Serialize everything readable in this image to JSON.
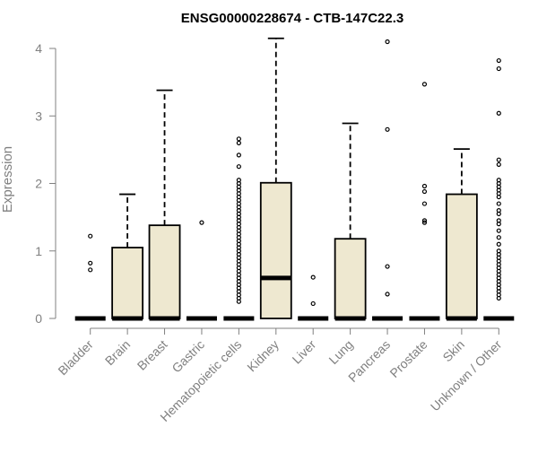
{
  "chart_data": {
    "type": "box",
    "title": "ENSG00000228674 - CTB-147C22.3",
    "xlabel": "",
    "ylabel": "Expression",
    "ylim": [
      0,
      4.2
    ],
    "yticks": [
      0,
      1,
      2,
      3,
      4
    ],
    "grid": false,
    "legend": "none",
    "categories": [
      "Bladder",
      "Brain",
      "Breast",
      "Gastric",
      "Hematopoietic cells",
      "Kidney",
      "Liver",
      "Lung",
      "Pancreas",
      "Prostate",
      "Skin",
      "Unknown / Other"
    ],
    "boxes": [
      {
        "q1": 0,
        "median": 0,
        "q3": 0,
        "whisker_low": 0,
        "whisker_high": 0,
        "outliers": [
          1.22,
          0.82,
          0.72
        ]
      },
      {
        "q1": 0,
        "median": 0,
        "q3": 1.05,
        "whisker_low": 0,
        "whisker_high": 1.84,
        "outliers": []
      },
      {
        "q1": 0,
        "median": 0,
        "q3": 1.38,
        "whisker_low": 0,
        "whisker_high": 3.38,
        "outliers": []
      },
      {
        "q1": 0,
        "median": 0,
        "q3": 0,
        "whisker_low": 0,
        "whisker_high": 0,
        "outliers": [
          1.42
        ]
      },
      {
        "q1": 0,
        "median": 0,
        "q3": 0,
        "whisker_low": 0,
        "whisker_high": 0,
        "outliers": [
          2.66,
          2.6,
          2.42,
          2.25,
          2.05,
          2.0,
          1.95,
          1.9,
          1.85,
          1.8,
          1.75,
          1.7,
          1.65,
          1.6,
          1.55,
          1.5,
          1.45,
          1.4,
          1.35,
          1.3,
          1.25,
          1.2,
          1.15,
          1.1,
          1.05,
          1.0,
          0.95,
          0.9,
          0.85,
          0.8,
          0.75,
          0.7,
          0.65,
          0.6,
          0.55,
          0.5,
          0.45,
          0.4,
          0.35,
          0.3,
          0.25
        ]
      },
      {
        "q1": 0,
        "median": 0.6,
        "q3": 2.01,
        "whisker_low": 0,
        "whisker_high": 4.15,
        "outliers": []
      },
      {
        "q1": 0,
        "median": 0,
        "q3": 0,
        "whisker_low": 0,
        "whisker_high": 0,
        "outliers": [
          0.61,
          0.22
        ]
      },
      {
        "q1": 0,
        "median": 0,
        "q3": 1.18,
        "whisker_low": 0,
        "whisker_high": 2.89,
        "outliers": []
      },
      {
        "q1": 0,
        "median": 0,
        "q3": 0,
        "whisker_low": 0,
        "whisker_high": 0,
        "outliers": [
          4.1,
          2.8,
          0.77,
          0.36
        ]
      },
      {
        "q1": 0,
        "median": 0,
        "q3": 0,
        "whisker_low": 0,
        "whisker_high": 0,
        "outliers": [
          3.47,
          1.96,
          1.88,
          1.7,
          1.45,
          1.42
        ]
      },
      {
        "q1": 0,
        "median": 0,
        "q3": 1.84,
        "whisker_low": 0,
        "whisker_high": 2.51,
        "outliers": []
      },
      {
        "q1": 0,
        "median": 0,
        "q3": 0,
        "whisker_low": 0,
        "whisker_high": 0,
        "outliers": [
          3.82,
          3.7,
          3.04,
          2.35,
          2.28,
          2.05,
          2.0,
          1.95,
          1.9,
          1.85,
          1.8,
          1.7,
          1.6,
          1.55,
          1.45,
          1.4,
          1.3,
          1.2,
          1.1,
          1.0,
          0.95,
          0.9,
          0.85,
          0.8,
          0.75,
          0.7,
          0.65,
          0.6,
          0.55,
          0.5,
          0.45,
          0.4,
          0.35,
          0.3
        ]
      }
    ]
  },
  "colors": {
    "box_fill": "#EEE8D0",
    "box_stroke": "#000000",
    "axis": "#808080",
    "title": "#000000"
  }
}
